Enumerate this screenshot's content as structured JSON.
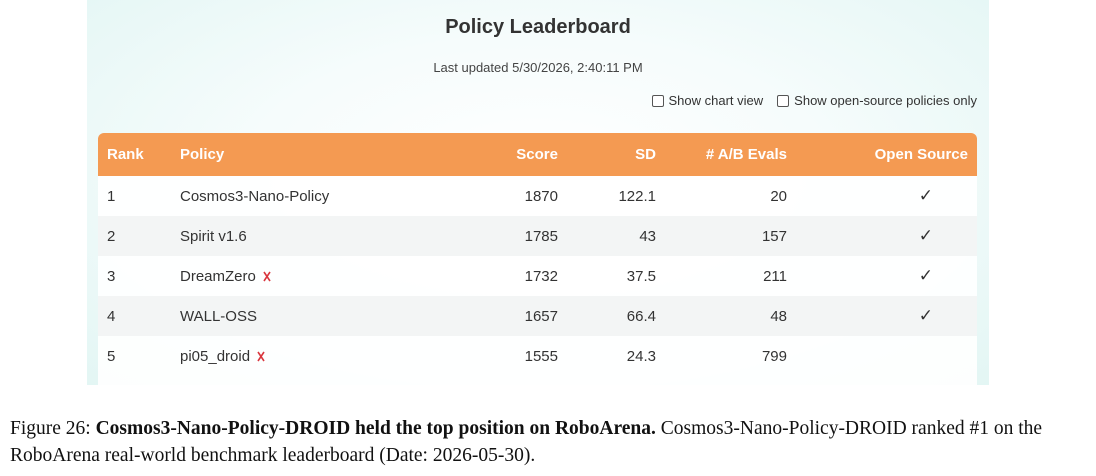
{
  "header": {
    "title": "Policy Leaderboard",
    "last_updated": "Last updated 5/30/2026, 2:40:11 PM"
  },
  "controls": [
    "Show chart view",
    "Show open-source policies only"
  ],
  "table": {
    "columns": [
      "Rank",
      "Policy",
      "Score",
      "SD",
      "# A/B Evals",
      "Open Source"
    ],
    "rows": [
      [
        1,
        "Cosmos3-Nano-Policy",
        1870,
        122.1,
        20,
        "✓"
      ],
      [
        2,
        "Spirit v1.6",
        1785,
        43,
        157,
        "✓"
      ],
      [
        3,
        "DreamZero",
        1732,
        37.5,
        211,
        "✓"
      ],
      [
        4,
        "WALL-OSS",
        1657,
        66.4,
        48,
        "✓"
      ],
      [
        5,
        "pi05_droid",
        1555,
        24.3,
        799,
        null
      ]
    ]
  },
  "caption": {
    "label": "Figure 26:",
    "bold": "Cosmos3-Nano-Policy-DROID held the top position on RoboArena.",
    "text": "Cosmos3-Nano-Policy-DROID ranked #1 on the RoboArena real-world benchmark leaderboard (Date: 2026-05-30)."
  }
}
